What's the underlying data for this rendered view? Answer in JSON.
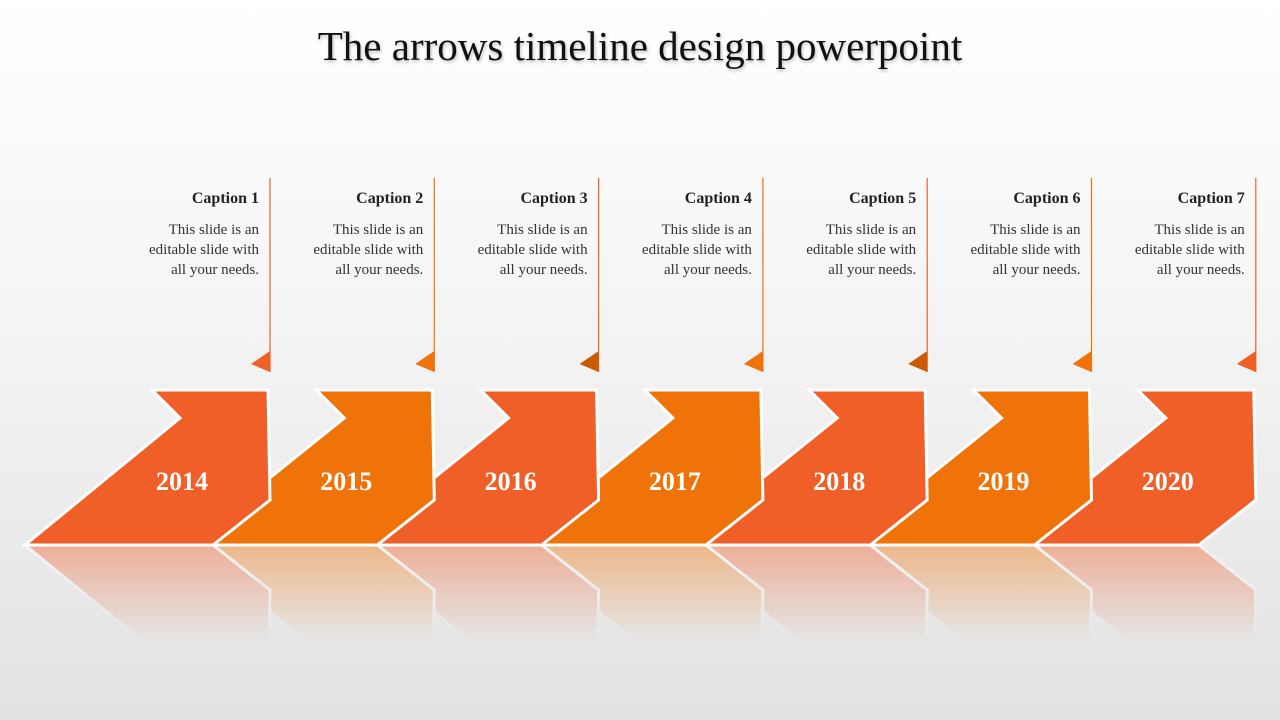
{
  "title": "The arrows timeline design powerpoint",
  "colors": {
    "primary": "#f05f28",
    "secondary": "#f07309",
    "accent_dark": "#c95a06"
  },
  "items": [
    {
      "caption": "Caption 1",
      "text_lines": [
        "This slide is an",
        "editable slide with",
        "all your needs."
      ],
      "year": "2014",
      "color": "#f05f28",
      "marker": "#f05f28"
    },
    {
      "caption": "Caption 2",
      "text_lines": [
        "This slide is an",
        "editable slide with",
        "all your needs."
      ],
      "year": "2015",
      "color": "#f07309",
      "marker": "#f07309"
    },
    {
      "caption": "Caption 3",
      "text_lines": [
        "This slide is an",
        "editable slide with",
        "all your needs."
      ],
      "year": "2016",
      "color": "#f05f28",
      "marker": "#c95a06"
    },
    {
      "caption": "Caption 4",
      "text_lines": [
        "This slide is an",
        "editable slide with",
        "all your needs."
      ],
      "year": "2017",
      "color": "#f07309",
      "marker": "#f07309"
    },
    {
      "caption": "Caption 5",
      "text_lines": [
        "This slide is an",
        "editable slide with",
        "all your needs."
      ],
      "year": "2018",
      "color": "#f05f28",
      "marker": "#c95a06"
    },
    {
      "caption": "Caption 6",
      "text_lines": [
        "This slide is an",
        "editable slide with",
        "all your needs."
      ],
      "year": "2019",
      "color": "#f07309",
      "marker": "#f07309"
    },
    {
      "caption": "Caption 7",
      "text_lines": [
        "This slide is an",
        "editable slide with",
        "all your needs."
      ],
      "year": "2020",
      "color": "#f05f28",
      "marker": "#f05f28"
    }
  ]
}
